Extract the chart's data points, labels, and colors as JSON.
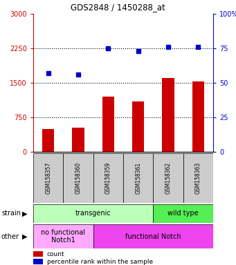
{
  "title": "GDS2848 / 1450288_at",
  "samples": [
    "GSM158357",
    "GSM158360",
    "GSM158359",
    "GSM158361",
    "GSM158362",
    "GSM158363"
  ],
  "counts": [
    500,
    520,
    1200,
    1100,
    1600,
    1530
  ],
  "percentiles": [
    57,
    56,
    75,
    73,
    76,
    76
  ],
  "ylim_left": [
    0,
    3000
  ],
  "ylim_right": [
    0,
    100
  ],
  "yticks_left": [
    0,
    750,
    1500,
    2250,
    3000
  ],
  "yticks_left_labels": [
    "0",
    "750",
    "1500",
    "2250",
    "3000"
  ],
  "yticks_right": [
    0,
    25,
    50,
    75,
    100
  ],
  "yticks_right_labels": [
    "0",
    "25",
    "50",
    "75",
    "100%"
  ],
  "bar_color": "#cc0000",
  "dot_color": "#0000cc",
  "strain_groups": [
    {
      "label": "transgenic",
      "start": 0,
      "end": 4,
      "color": "#bbffbb"
    },
    {
      "label": "wild type",
      "start": 4,
      "end": 6,
      "color": "#55ee55"
    }
  ],
  "other_groups": [
    {
      "label": "no functional\nNotch1",
      "start": 0,
      "end": 2,
      "color": "#ffaaff"
    },
    {
      "label": "functional Notch",
      "start": 2,
      "end": 6,
      "color": "#ee44ee"
    }
  ],
  "strain_label": "strain",
  "other_label": "other",
  "legend_count_label": "count",
  "legend_pct_label": "percentile rank within the sample",
  "bg_color": "#ffffff",
  "tick_label_color_left": "#cc0000",
  "tick_label_color_right": "#0000cc",
  "xticklabel_bg": "#cccccc"
}
